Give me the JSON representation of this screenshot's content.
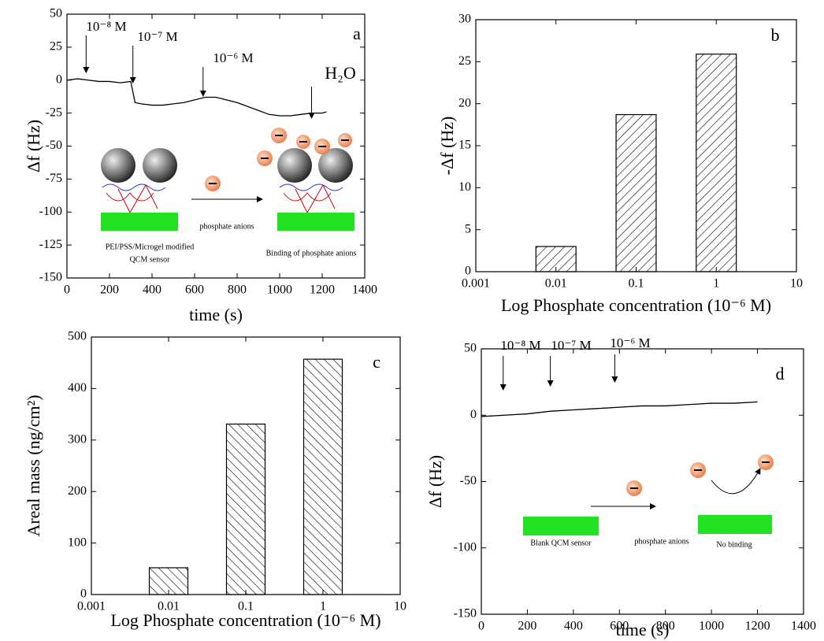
{
  "chart_data": [
    {
      "type": "line",
      "panel_label": "a",
      "color": "#000000",
      "x": [
        0,
        50,
        100,
        150,
        200,
        250,
        300,
        320,
        350,
        400,
        450,
        500,
        550,
        600,
        650,
        700,
        750,
        800,
        850,
        900,
        950,
        1000,
        1050,
        1100,
        1150,
        1200,
        1220
      ],
      "values": [
        0,
        1,
        0,
        -1,
        -1,
        -2,
        -1,
        -17,
        -18,
        -19,
        -19,
        -18,
        -17,
        -15,
        -13,
        -13,
        -15,
        -17,
        -20,
        -23,
        -26,
        -27,
        -27,
        -26,
        -25,
        -25,
        -24
      ],
      "xlim": [
        0,
        1400
      ],
      "xticks": [
        0,
        200,
        400,
        600,
        800,
        1000,
        1200,
        1400
      ],
      "ylim": [
        -150,
        50
      ],
      "yticks": [
        -150,
        -125,
        -100,
        -75,
        -50,
        -25,
        0,
        25,
        50
      ],
      "x_label": "time (s)",
      "y_label": "Δf (Hz)",
      "annotations": [
        "10⁻⁸ M",
        "10⁻⁷ M",
        "10⁻⁶ M",
        "H₂O"
      ],
      "inset_labels": [
        "phosphate anions",
        "PEI/PSS/Microgel modified",
        "QCM sensor",
        "Binding of phosphate anions"
      ]
    },
    {
      "type": "bar",
      "panel_label": "b",
      "color": "#000000",
      "hatch": "forward",
      "x_scale": "log",
      "x": [
        0.01,
        0.1,
        1
      ],
      "values": [
        3,
        18.7,
        25.9
      ],
      "xlim": [
        0.001,
        10
      ],
      "xticks": [
        0.001,
        0.01,
        0.1,
        1,
        10
      ],
      "ylim": [
        0,
        30
      ],
      "yticks": [
        0,
        5,
        10,
        15,
        20,
        25,
        30
      ],
      "x_label": "Log Phosphate concentration (10⁻⁶ M)",
      "y_label": "-Δf (Hz)"
    },
    {
      "type": "bar",
      "panel_label": "c",
      "color": "#000000",
      "hatch": "backward",
      "x_scale": "log",
      "x": [
        0.01,
        0.1,
        1
      ],
      "values": [
        52,
        331,
        457
      ],
      "xlim": [
        0.001,
        10
      ],
      "xticks": [
        0.001,
        0.01,
        0.1,
        1,
        10
      ],
      "ylim": [
        0,
        500
      ],
      "yticks": [
        0,
        100,
        200,
        300,
        400,
        500
      ],
      "x_label": "Log Phosphate concentration (10⁻⁶ M)",
      "y_label": "Areal mass (ng/cm²)"
    },
    {
      "type": "line",
      "panel_label": "d",
      "color": "#000000",
      "x": [
        0,
        100,
        200,
        300,
        400,
        500,
        600,
        700,
        800,
        900,
        1000,
        1100,
        1200
      ],
      "values": [
        -1,
        0,
        1,
        3,
        4,
        5,
        6,
        7,
        7,
        8,
        9,
        9,
        10
      ],
      "xlim": [
        0,
        1400
      ],
      "xticks": [
        0,
        200,
        400,
        600,
        800,
        1000,
        1200,
        1400
      ],
      "ylim": [
        -150,
        50
      ],
      "yticks": [
        -150,
        -100,
        -50,
        0,
        50
      ],
      "x_label": "time (s)",
      "y_label": "Δf (Hz)",
      "annotations": [
        "10⁻⁸ M",
        "10⁻⁷ M",
        "10⁻⁶ M"
      ],
      "inset_labels": [
        "phosphate anions",
        "Blank QCM sensor",
        "No binding"
      ]
    }
  ]
}
